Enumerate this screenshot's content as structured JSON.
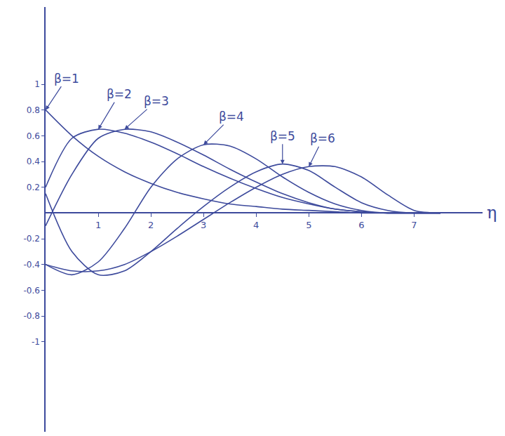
{
  "chart_data": {
    "type": "line",
    "x_label": "η",
    "x": [
      0,
      0.5,
      1,
      1.5,
      2,
      2.5,
      3,
      3.5,
      4,
      4.5,
      5,
      5.5,
      6,
      6.5,
      7,
      7.5
    ],
    "series": [
      {
        "name": "β=1",
        "color": "#3d4a9c",
        "values": [
          0.8,
          0.6,
          0.44,
          0.32,
          0.23,
          0.16,
          0.11,
          0.07,
          0.05,
          0.03,
          0.02,
          0.01,
          0,
          0,
          0,
          0
        ]
      },
      {
        "name": "β=2",
        "color": "#3d4a9c",
        "values": [
          0.2,
          0.58,
          0.65,
          0.62,
          0.55,
          0.46,
          0.36,
          0.27,
          0.19,
          0.12,
          0.07,
          0.03,
          0.01,
          0,
          0,
          0
        ]
      },
      {
        "name": "β=3",
        "color": "#3d4a9c",
        "values": [
          -0.1,
          0.3,
          0.58,
          0.65,
          0.63,
          0.55,
          0.45,
          0.34,
          0.24,
          0.15,
          0.08,
          0.03,
          0.01,
          0,
          0,
          0
        ]
      },
      {
        "name": "β=4",
        "color": "#3d4a9c",
        "values": [
          -0.4,
          -0.48,
          -0.38,
          -0.12,
          0.2,
          0.42,
          0.53,
          0.52,
          0.42,
          0.28,
          0.16,
          0.07,
          0.02,
          0,
          0,
          0
        ]
      },
      {
        "name": "β=5",
        "color": "#3d4a9c",
        "values": [
          0.15,
          -0.3,
          -0.48,
          -0.45,
          -0.3,
          -0.12,
          0.05,
          0.2,
          0.32,
          0.38,
          0.33,
          0.2,
          0.08,
          0.02,
          0,
          0
        ]
      },
      {
        "name": "β=6",
        "color": "#3d4a9c",
        "values": [
          -0.4,
          -0.45,
          -0.45,
          -0.4,
          -0.3,
          -0.18,
          -0.05,
          0.08,
          0.2,
          0.3,
          0.36,
          0.36,
          0.28,
          0.14,
          0.02,
          0
        ]
      }
    ],
    "xlim": [
      0,
      8.3
    ],
    "ylim": [
      -1.7,
      1.6
    ],
    "xticks": [
      1,
      2,
      3,
      4,
      5,
      6,
      7
    ],
    "yticks": [
      -1,
      -0.8,
      -0.6,
      -0.4,
      -0.2,
      0.2,
      0.4,
      0.6,
      0.8,
      1
    ],
    "grid": false
  }
}
